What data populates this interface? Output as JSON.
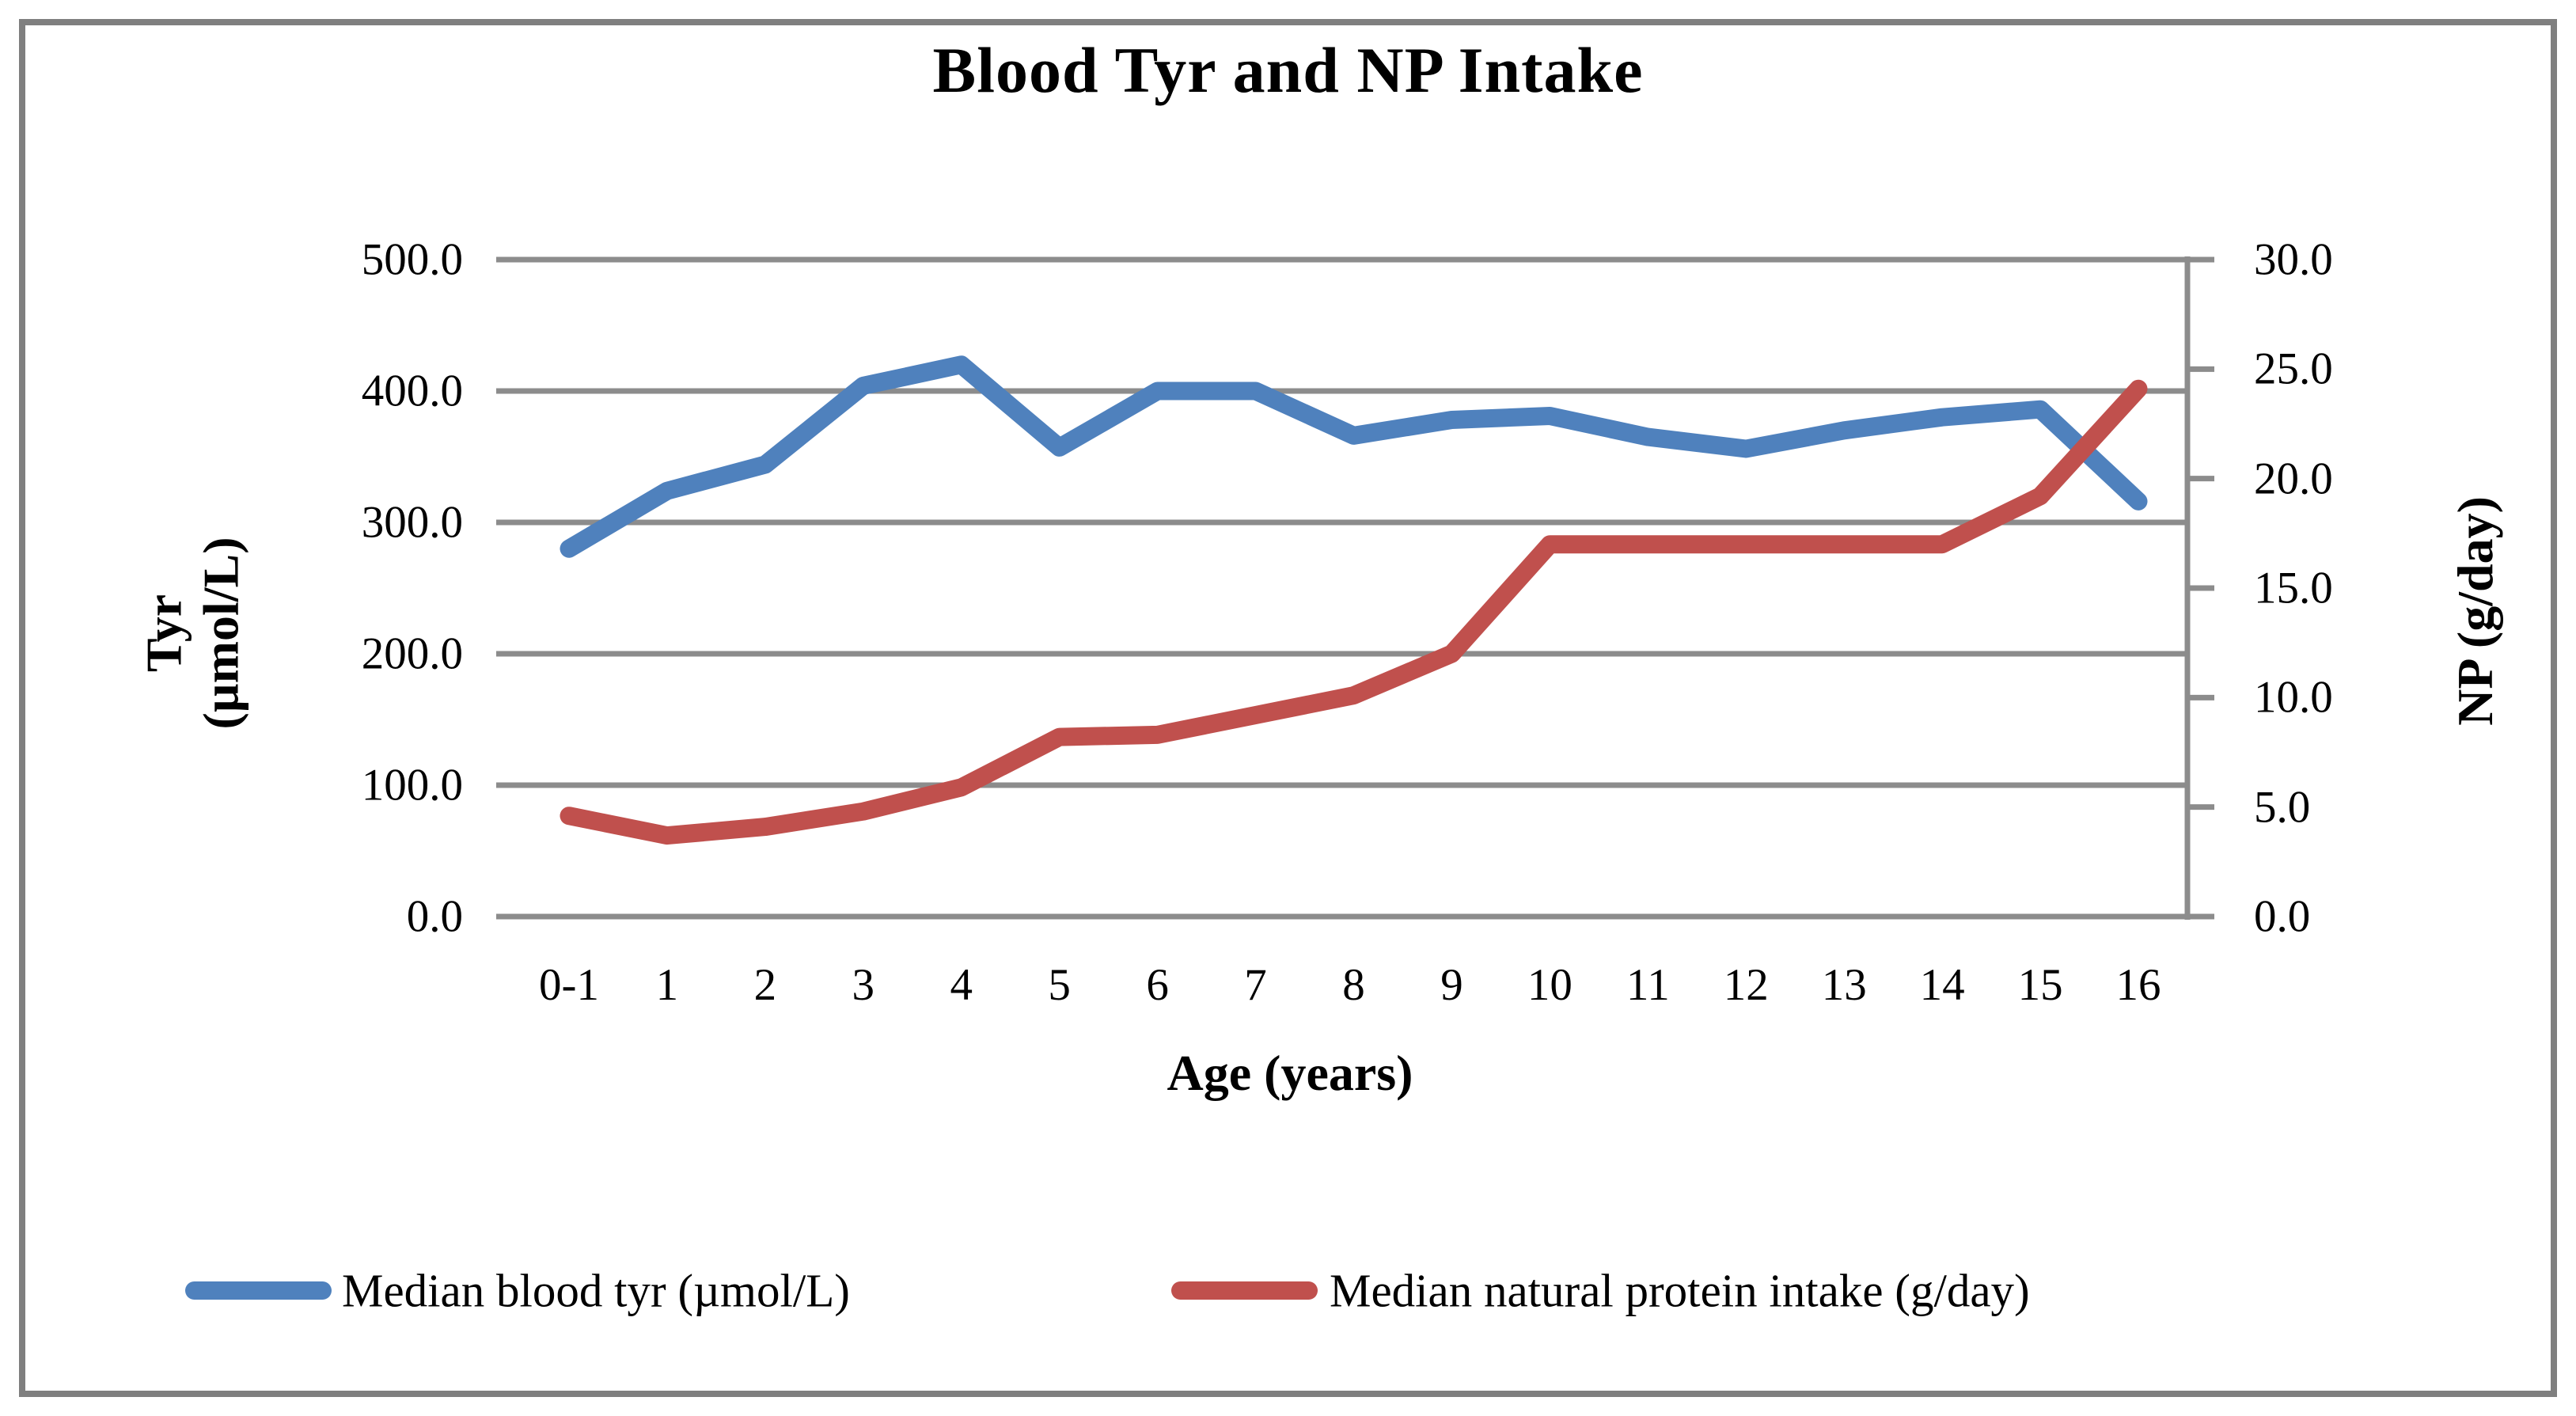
{
  "figure": {
    "background_color": "#FFFFFF",
    "border_color": "#7F7F7F",
    "gridline_color": "#8C8C8C",
    "text_color": "#000000"
  },
  "chart_data": {
    "type": "line",
    "title": "Blood Tyr and NP Intake",
    "grid": "horizontal-on",
    "legend_position": "bottom",
    "x_axis": {
      "title": "Age (years)",
      "categories": [
        "0-1",
        "1",
        "2",
        "3",
        "4",
        "5",
        "6",
        "7",
        "8",
        "9",
        "10",
        "11",
        "12",
        "13",
        "14",
        "15",
        "16"
      ]
    },
    "left_axis": {
      "title_line1": "Tyr",
      "title_line2": "(µmol/L)",
      "min": 0,
      "max": 500,
      "tick_labels": [
        "500.0",
        "400.0",
        "300.0",
        "200.0",
        "100.0",
        "0.0"
      ]
    },
    "right_axis": {
      "title": "NP (g/day)",
      "min": 0,
      "max": 30,
      "tick_labels": [
        "30.0",
        "25.0",
        "20.0",
        "15.0",
        "10.0",
        "5.0",
        "0.0"
      ]
    },
    "series": [
      {
        "name": "Median blood tyr (µmol/L)",
        "axis": "left",
        "color": "#4F81BD",
        "values": [
          280,
          324,
          344,
          404,
          420,
          357,
          400,
          400,
          366,
          378,
          381,
          365,
          356,
          370,
          380,
          386,
          316
        ]
      },
      {
        "name": "Median natural protein intake (g/day)",
        "axis": "right",
        "color": "#C0504D",
        "values": [
          4.6,
          3.7,
          4.1,
          4.8,
          5.9,
          8.2,
          8.3,
          9.2,
          10.1,
          12.0,
          17.0,
          17.0,
          17.0,
          17.0,
          17.0,
          19.2,
          24.1
        ]
      }
    ]
  },
  "legend": {
    "items": [
      {
        "label": "Median blood tyr (µmol/L)",
        "color": "#4F81BD"
      },
      {
        "label": "Median natural protein intake (g/day)",
        "color": "#C0504D"
      }
    ]
  }
}
